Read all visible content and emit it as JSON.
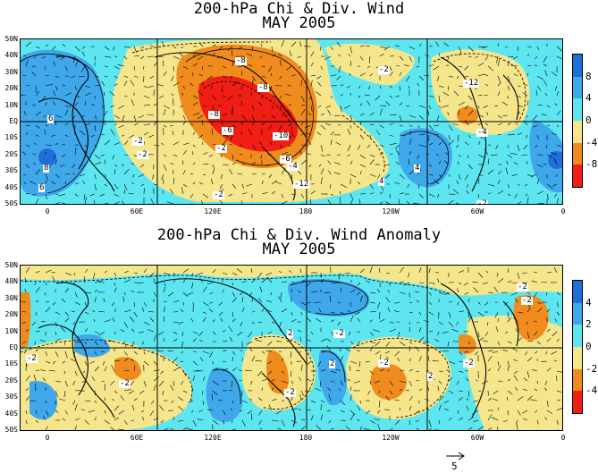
{
  "top": {
    "title": "200-hPa Chi & Div. Wind",
    "subtitle": "MAY 2005",
    "colorbar": [
      {
        "label": "8",
        "color": "#1e6fd8"
      },
      {
        "label": "4",
        "color": "#3fa8ea"
      },
      {
        "label": "0",
        "color": "#5ee6f0"
      },
      {
        "label": "-4",
        "color": "#f5e68c"
      },
      {
        "label": "-8",
        "color": "#f08c1e"
      },
      {
        "label": "",
        "color": "#f01e14"
      }
    ],
    "contour_labels": [
      "-8",
      "-8",
      "-8",
      "-6",
      "-10",
      "-6",
      "-4",
      "-2",
      "-12",
      "-2",
      "6",
      "8",
      "6",
      "-2",
      "-2",
      "-2",
      "4",
      "-12",
      "-4",
      "4",
      "-2"
    ]
  },
  "bottom": {
    "title": "200-hPa Chi & Div. Wind Anomaly",
    "subtitle": "MAY 2005",
    "colorbar": [
      {
        "label": "4",
        "color": "#1e6fd8"
      },
      {
        "label": "2",
        "color": "#3fa8ea"
      },
      {
        "label": "0",
        "color": "#5ee6f0"
      },
      {
        "label": "-2",
        "color": "#f5e68c"
      },
      {
        "label": "-4",
        "color": "#f08c1e"
      },
      {
        "label": "",
        "color": "#f01e14"
      }
    ],
    "contour_labels": [
      "-2",
      "-2",
      "2",
      "-2",
      "2",
      "-2",
      "-2",
      "2",
      "-2",
      "-2",
      "-2"
    ]
  },
  "lat_labels": [
    "50N",
    "40N",
    "30N",
    "20N",
    "10N",
    "EQ",
    "10S",
    "20S",
    "30S",
    "40S",
    "50S"
  ],
  "lon_labels": [
    "0",
    "60E",
    "120E",
    "180",
    "120W",
    "60W",
    "0"
  ],
  "reference_vector": "5"
}
